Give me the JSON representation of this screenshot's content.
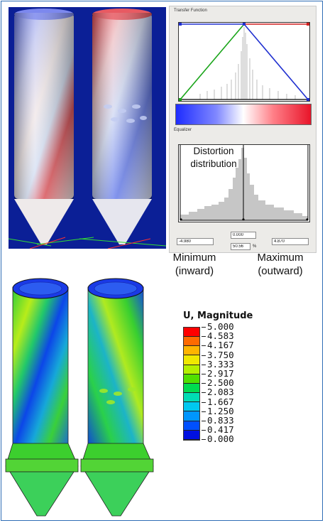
{
  "transfer_panel": {
    "title": "Transfer Function",
    "equalizer_title": "Equalizer",
    "min_value": "-4.980",
    "mid_value": "0.000",
    "percent_value": "50.56",
    "percent_unit": "%",
    "max_value": "4.870",
    "gradient_colors": [
      "#1e2cff",
      "#ffffff",
      "#e8152a"
    ]
  },
  "annotations": {
    "distortion_line1": "Distortion",
    "distortion_line2": "distribution",
    "min_line1": "Minimum",
    "min_line2": "(inward)",
    "max_line1": "Maximum",
    "max_line2": "(outward)"
  },
  "legend": {
    "title": "U, Magnitude",
    "values": [
      "5.000",
      "4.583",
      "4.167",
      "3.750",
      "3.333",
      "2.917",
      "2.500",
      "2.083",
      "1.667",
      "1.250",
      "0.833",
      "0.417",
      "0.000"
    ],
    "colors": [
      "#ff0000",
      "#ff6a00",
      "#ffb400",
      "#f0e800",
      "#b4f000",
      "#50e000",
      "#00dc50",
      "#00dcb4",
      "#00c8f0",
      "#0096ff",
      "#0050ff",
      "#0010e0"
    ]
  }
}
